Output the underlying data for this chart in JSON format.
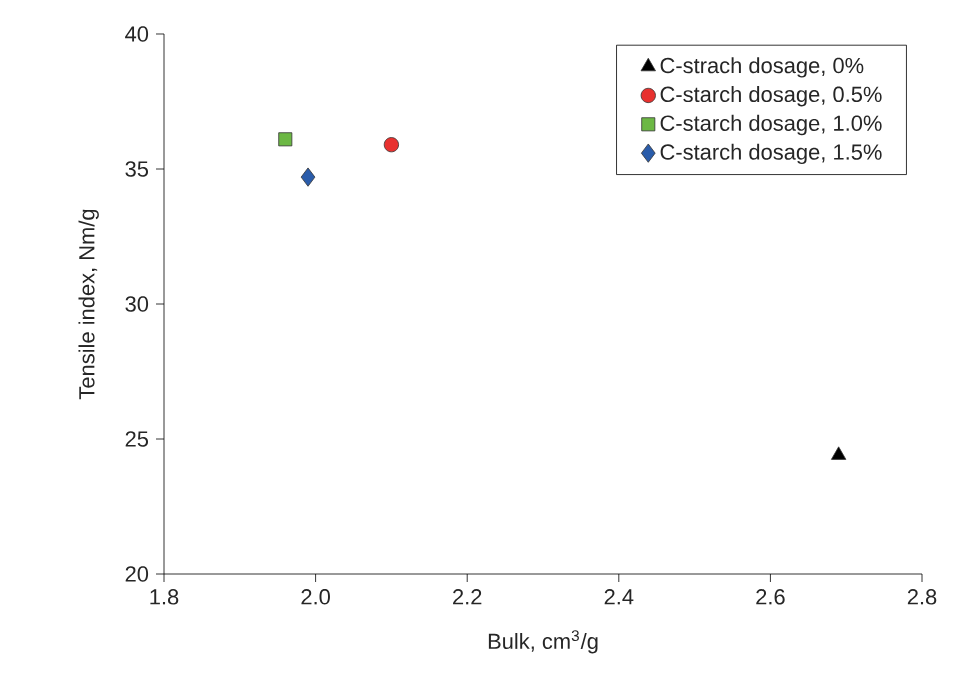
{
  "chart_data": {
    "type": "scatter",
    "xlabel": "Bulk, cm$^{3}$/g",
    "ylabel": "Tensile index, Nm/g",
    "xlim": [
      1.8,
      2.8
    ],
    "xticks": [
      {
        "value": 1.8,
        "label": "1.8"
      },
      {
        "value": 2.0,
        "label": "2.0"
      },
      {
        "value": 2.2,
        "label": "2.2"
      },
      {
        "value": 2.4,
        "label": "2.4"
      },
      {
        "value": 2.6,
        "label": "2.6"
      },
      {
        "value": 2.8,
        "label": "2.8"
      }
    ],
    "ylim": [
      20,
      40
    ],
    "yticks": [
      20,
      25,
      30,
      35,
      40
    ],
    "grid": false,
    "legend": "top right",
    "series": [
      {
        "name": "C-strach dosage, 0%",
        "color": "#000000",
        "marker": "triangle",
        "x": [
          2.69
        ],
        "values": [
          24.4
        ]
      },
      {
        "name": "C-starch dosage, 0.5%",
        "color": "#e8312f",
        "marker": "circle",
        "x": [
          2.1
        ],
        "values": [
          35.9
        ]
      },
      {
        "name": "C-starch dosage, 1.0%",
        "color": "#6cb844",
        "marker": "square",
        "x": [
          1.96
        ],
        "values": [
          36.1
        ]
      },
      {
        "name": "C-starch dosage, 1.5%",
        "color": "#2a5caa",
        "marker": "diamond",
        "x": [
          1.99
        ],
        "values": [
          34.7
        ]
      }
    ]
  }
}
